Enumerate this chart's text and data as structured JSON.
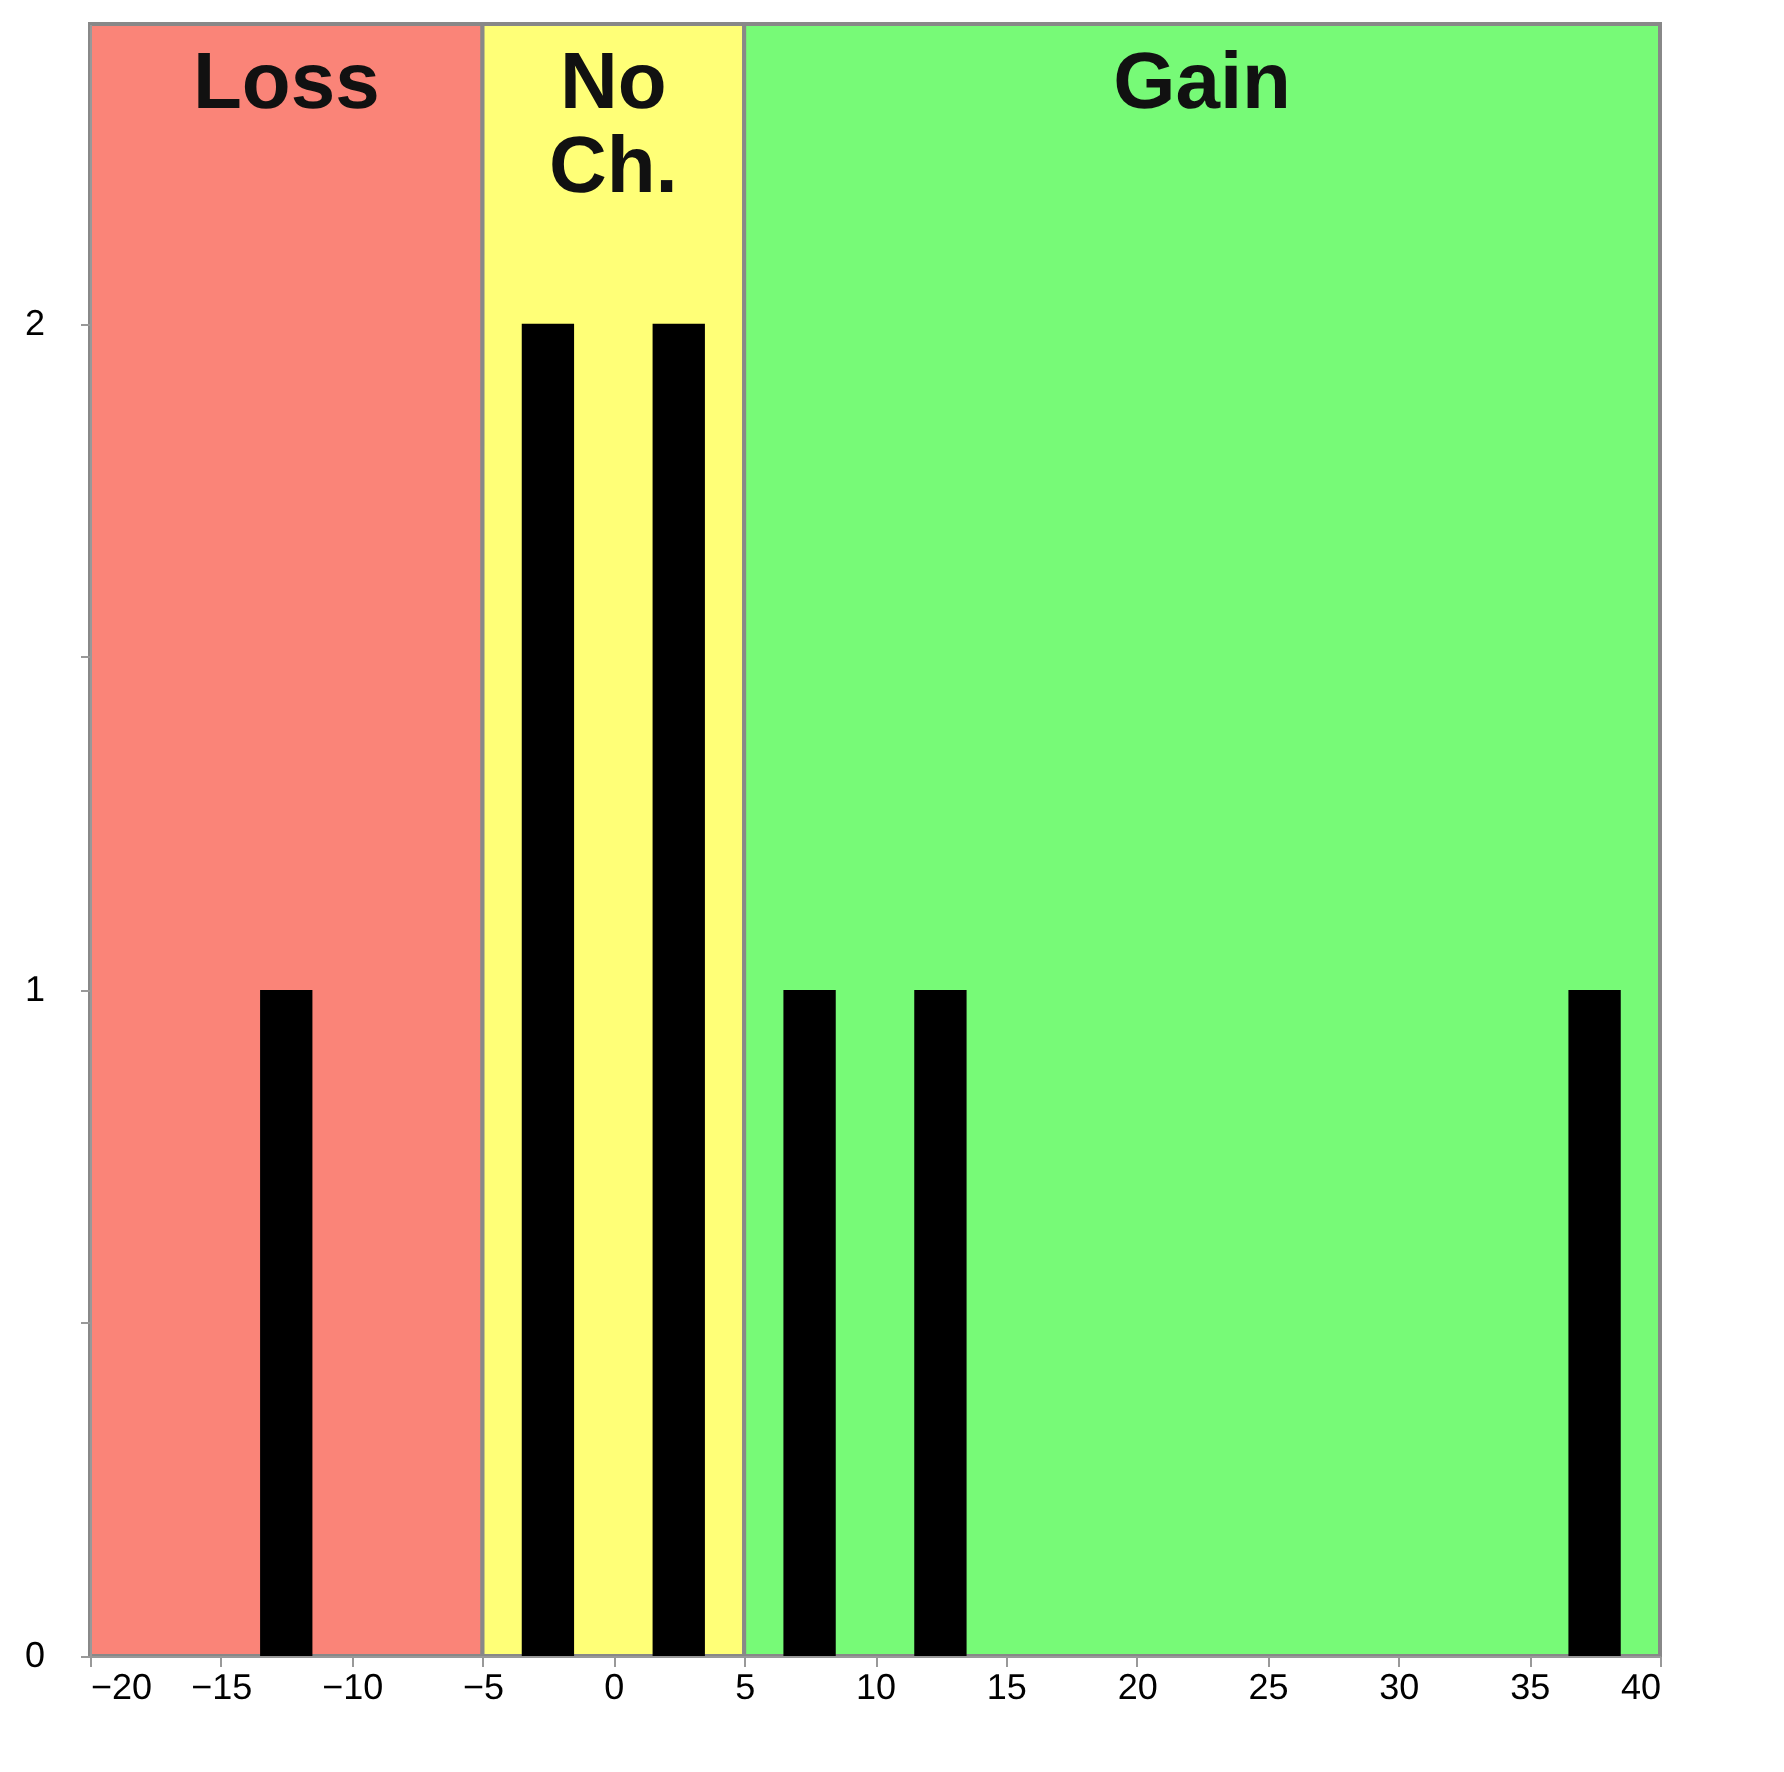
{
  "chart_data": {
    "type": "histogram",
    "bins": [
      -20,
      -15,
      -10,
      -5,
      0,
      5,
      10,
      15,
      20,
      25,
      30,
      35,
      40
    ],
    "values": [
      0,
      1,
      0,
      2,
      2,
      1,
      1,
      0,
      0,
      0,
      0,
      1
    ],
    "color": "#000000",
    "xlim": [
      -20,
      40
    ],
    "xticks": [
      -20,
      -15,
      -10,
      -5,
      0,
      5,
      10,
      15,
      20,
      25,
      30,
      35,
      40
    ],
    "ylim": [
      0,
      2.45
    ],
    "yticks": [
      0,
      {
        "value": 0.5,
        "label": null
      },
      1,
      {
        "value": 1.5,
        "label": null
      },
      2
    ],
    "bands": [
      {
        "axis": "x",
        "from": -20,
        "to": -5,
        "label": "Loss",
        "color": "#fa8478"
      },
      {
        "axis": "x",
        "from": -5,
        "to": 5,
        "label": "No Ch.",
        "color": "#ffff77"
      },
      {
        "axis": "x",
        "from": 5,
        "to": 40,
        "label": "Gain",
        "color": "#77fa77"
      }
    ]
  }
}
